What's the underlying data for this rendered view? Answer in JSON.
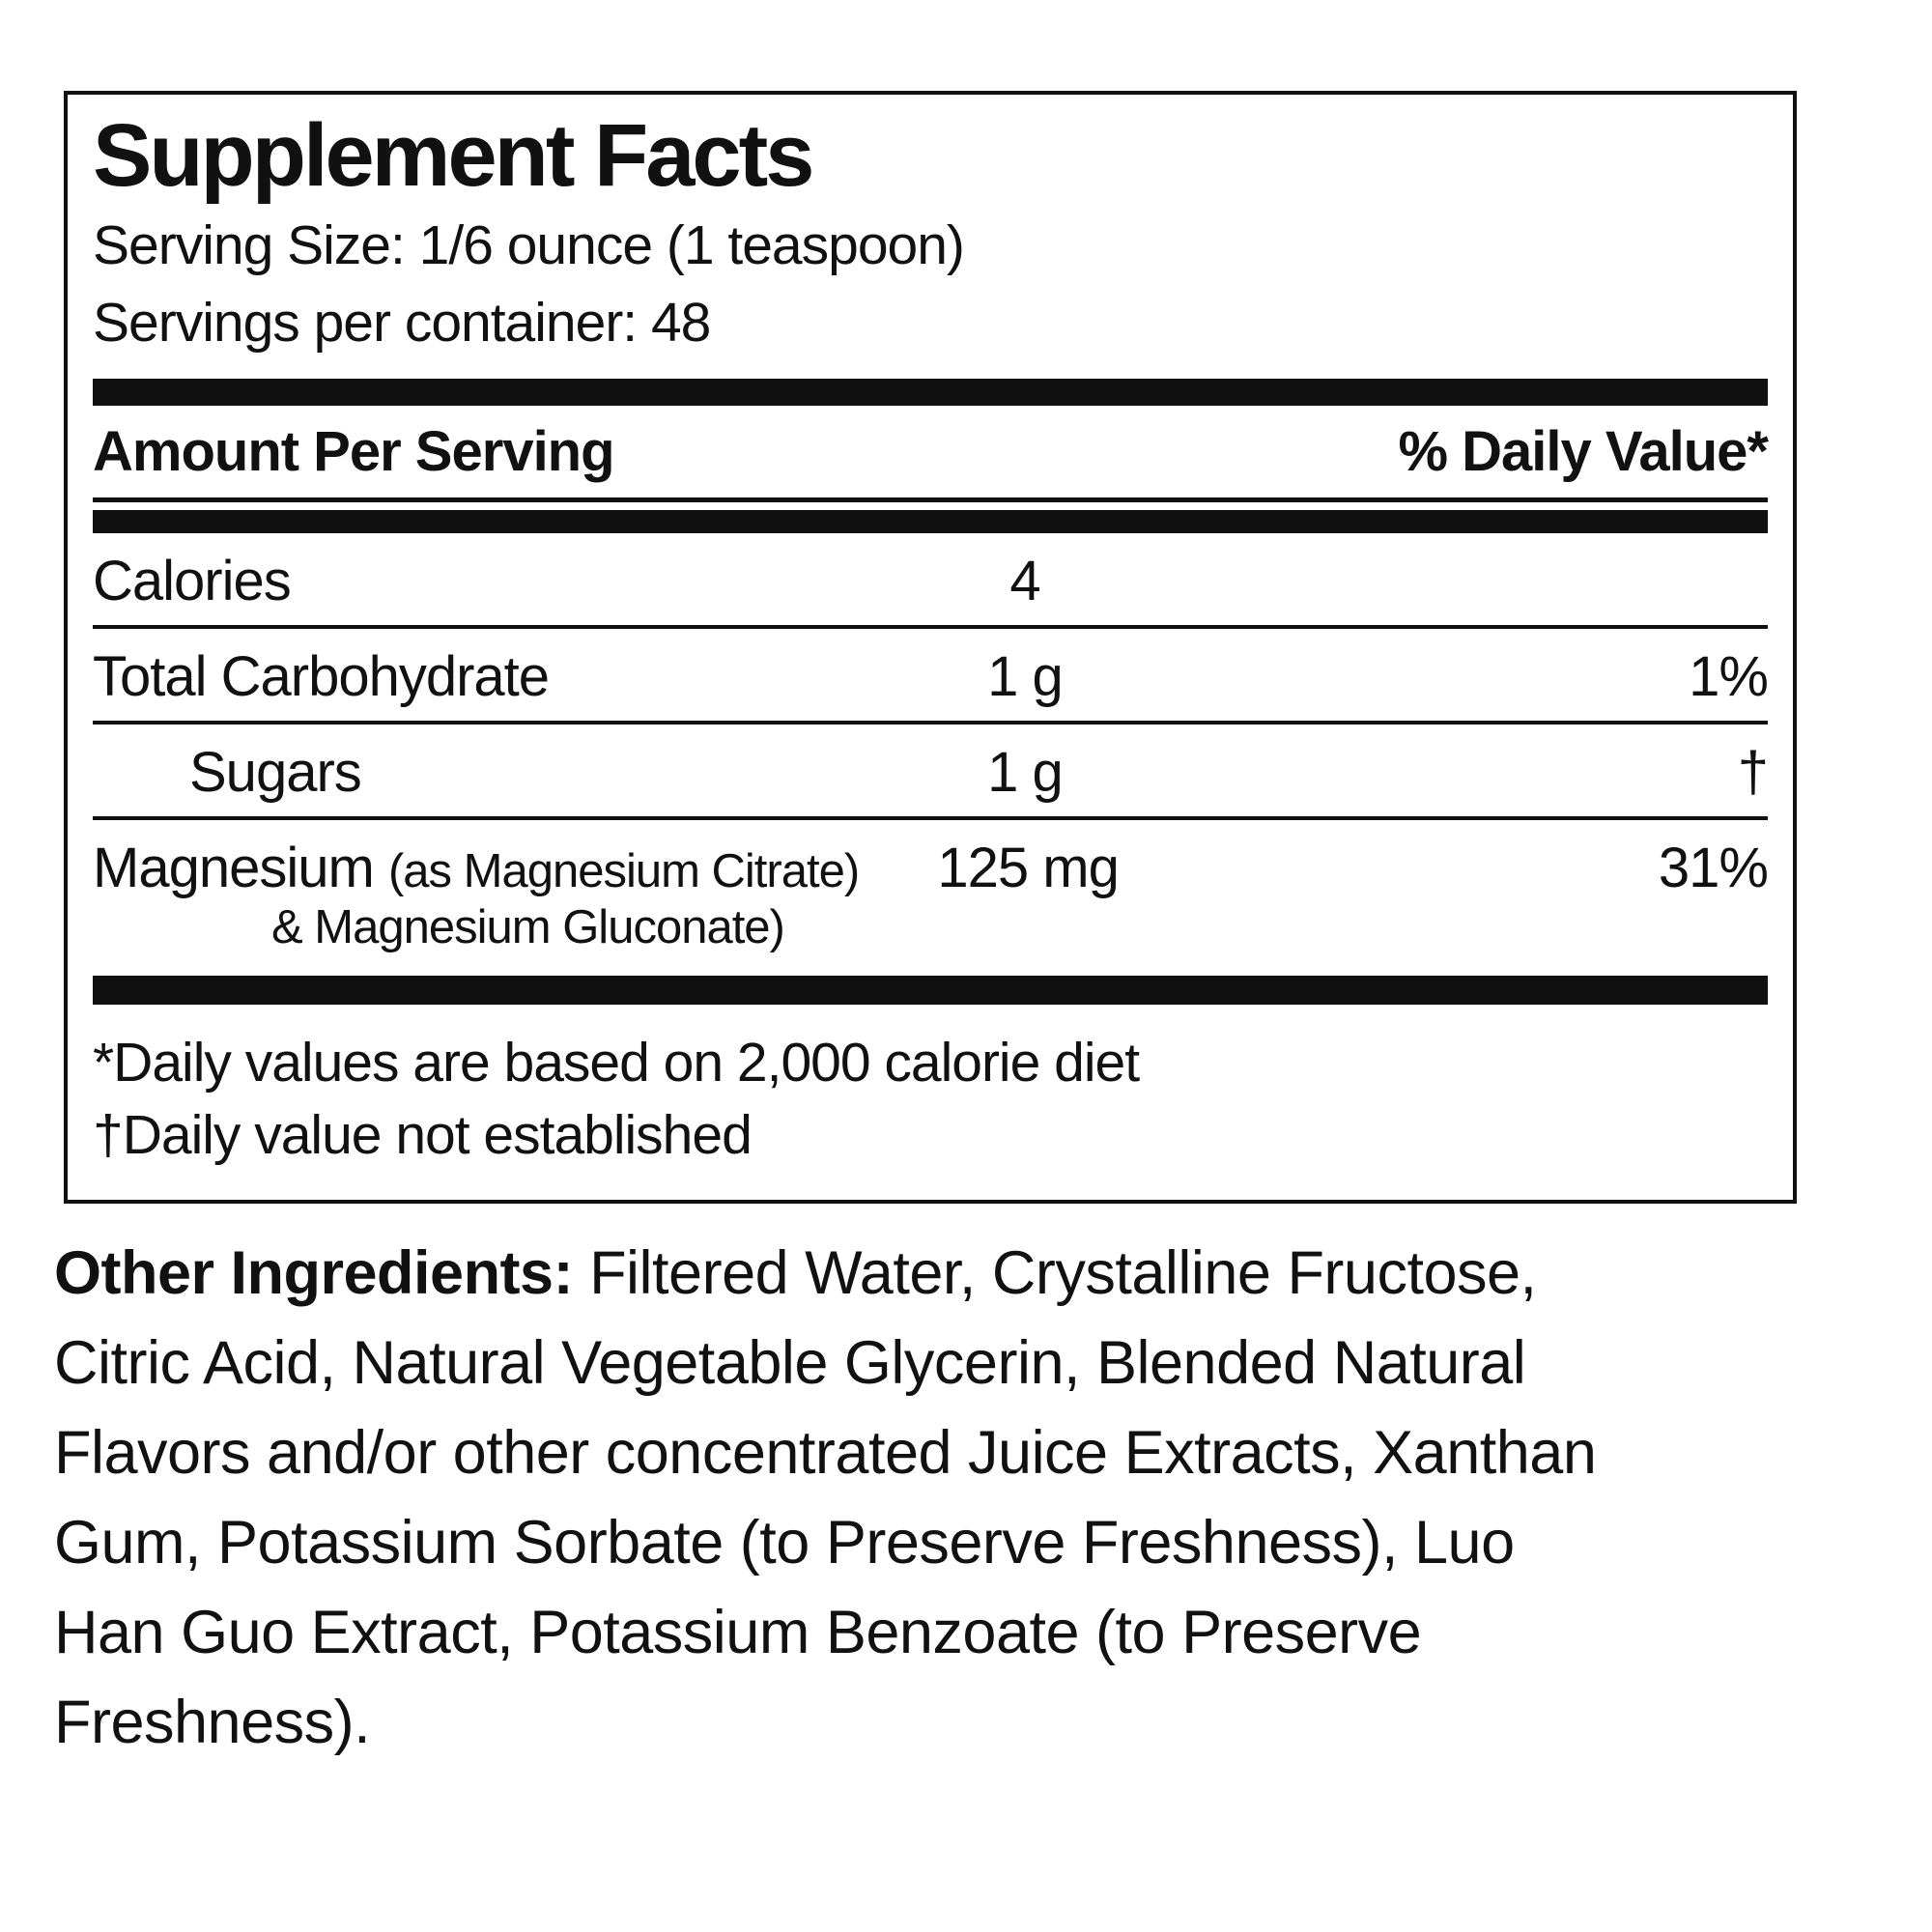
{
  "label": {
    "title": "Supplement Facts",
    "serving_size": "Serving Size: 1/6 ounce (1 teaspoon)",
    "servings_per_container": "Servings per container: 48",
    "header": {
      "amount_per_serving": "Amount Per Serving",
      "daily_value": "% Daily Value*"
    },
    "rows": [
      {
        "label": "Calories",
        "amount": "4",
        "dv": ""
      },
      {
        "label": "Total Carbohydrate",
        "amount": "1 g",
        "dv": "1%"
      },
      {
        "label": "Sugars",
        "amount": "1 g",
        "dv": "†"
      },
      {
        "label": "Magnesium",
        "label_detail": "(as Magnesium Citrate)",
        "label_detail_line2": "& Magnesium Gluconate)",
        "amount": "125 mg",
        "dv": "31%"
      }
    ],
    "footnotes": [
      "*Daily values are based on 2,000 calorie diet",
      "†Daily value not established"
    ]
  },
  "other_ingredients": {
    "prefix": "Other Ingredients:",
    "line1_rest": "Filtered Water, Crystalline Fructose,",
    "lines": [
      "Citric Acid, Natural Vegetable Glycerin, Blended Natural",
      "Flavors and/or other concentrated Juice Extracts, Xanthan",
      "Gum, Potassium Sorbate (to Preserve Freshness), Luo",
      "Han Guo Extract, Potassium Benzoate (to Preserve",
      "Freshness)."
    ]
  },
  "colors": {
    "text": "#111111",
    "background": "#ffffff"
  }
}
